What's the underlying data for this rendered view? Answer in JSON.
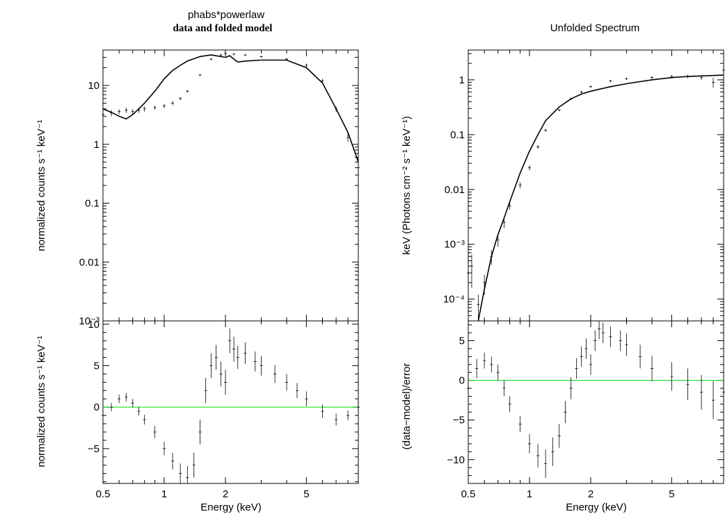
{
  "left": {
    "title": "phabs*powerlaw",
    "subtitle": "data and folded model",
    "top_panel": {
      "ylabel": "normalized counts s⁻¹ keV⁻¹",
      "yscale": "log",
      "ylim": [
        0.001,
        40
      ],
      "yticks": [
        {
          "v": 10,
          "label": "10"
        },
        {
          "v": 1,
          "label": "1"
        },
        {
          "v": 0.1,
          "label": "0.1"
        },
        {
          "v": 0.01,
          "label": "0.01"
        },
        {
          "v": 0.001,
          "label": "10⁻³"
        }
      ]
    },
    "bottom_panel": {
      "ylabel": "normalized counts s⁻¹ keV⁻¹",
      "yscale": "linear",
      "ylim": [
        -9.2,
        10.4
      ],
      "yticks": [
        {
          "v": 10,
          "label": "10"
        },
        {
          "v": 5,
          "label": "5"
        },
        {
          "v": 0,
          "label": "0"
        },
        {
          "v": -5,
          "label": "−5"
        }
      ]
    },
    "xlabel": "Energy (keV)",
    "xticks": [
      {
        "v": 0.5,
        "label": "0.5"
      },
      {
        "v": 1,
        "label": "1"
      },
      {
        "v": 2,
        "label": "2"
      },
      {
        "v": 5,
        "label": "5"
      }
    ]
  },
  "right": {
    "title": "Unfolded Spectrum",
    "top_panel": {
      "ylabel": "keV (Photons cm⁻² s⁻¹ keV⁻¹)",
      "yscale": "log",
      "ylim": [
        4e-05,
        3.5
      ],
      "yticks": [
        {
          "v": 1,
          "label": "1"
        },
        {
          "v": 0.1,
          "label": "0.1"
        },
        {
          "v": 0.01,
          "label": "0.01"
        },
        {
          "v": 0.001,
          "label": "10⁻³"
        },
        {
          "v": 0.0001,
          "label": "10⁻⁴"
        }
      ]
    },
    "bottom_panel": {
      "ylabel": "(data−model)/error",
      "yscale": "linear",
      "ylim": [
        -13,
        7.5
      ],
      "yticks": [
        {
          "v": 5,
          "label": "5"
        },
        {
          "v": 0,
          "label": "0"
        },
        {
          "v": -5,
          "label": "−5"
        },
        {
          "v": -10,
          "label": "−10"
        }
      ]
    },
    "xlabel": "Energy (keV)",
    "xticks": [
      {
        "v": 0.5,
        "label": "0.5"
      },
      {
        "v": 1,
        "label": "1"
      },
      {
        "v": 2,
        "label": "2"
      },
      {
        "v": 5,
        "label": "5"
      }
    ]
  },
  "colors": {
    "data": "#000000",
    "model": "#000000",
    "zero_line": "#00dd00",
    "frame": "#000000"
  },
  "chart_data": [
    {
      "type": "line",
      "panel": "left-top",
      "title": "phabs*powerlaw",
      "subtitle": "data and folded model",
      "ylabel": "normalized counts s⁻¹ keV⁻¹",
      "yscale": "log",
      "xscale": "log",
      "xlim": [
        0.5,
        9.0
      ],
      "ylim": [
        0.001,
        40
      ],
      "series": [
        {
          "style": "line",
          "x": [
            0.5,
            0.55,
            0.6,
            0.65,
            0.7,
            0.75,
            0.8,
            0.9,
            1.0,
            1.1,
            1.2,
            1.3,
            1.5,
            1.7,
            1.9,
            2.0,
            2.1,
            2.2,
            2.3,
            2.5,
            3.0,
            4.0,
            5.0,
            6.0,
            7.0,
            8.0,
            9.0
          ],
          "y": [
            4.0,
            3.5,
            3.0,
            2.7,
            3.2,
            4.0,
            5.0,
            8.0,
            13,
            18,
            22,
            26,
            31,
            33,
            31,
            30,
            32,
            28,
            25,
            26,
            27,
            27,
            20,
            11,
            4.0,
            1.6,
            0.5
          ]
        },
        {
          "style": "errorbars",
          "x": [
            0.5,
            0.55,
            0.6,
            0.65,
            0.7,
            0.75,
            0.8,
            0.9,
            1.0,
            1.1,
            1.2,
            1.3,
            1.5,
            1.7,
            1.9,
            2.0,
            2.2,
            2.5,
            3.0,
            4.0,
            5.0,
            6.0,
            7.0,
            8.0,
            9.0
          ],
          "y": [
            3.2,
            3.4,
            3.6,
            3.8,
            3.6,
            3.8,
            4.0,
            4.2,
            4.5,
            5.0,
            6.0,
            8.0,
            15,
            28,
            33,
            35,
            34,
            33,
            31,
            28,
            22,
            12,
            4.0,
            1.3,
            0.4
          ],
          "err_rel": [
            0.15,
            0.12,
            0.1,
            0.1,
            0.1,
            0.1,
            0.1,
            0.08,
            0.08,
            0.08,
            0.06,
            0.05,
            0.04,
            0.04,
            0.04,
            0.04,
            0.04,
            0.04,
            0.04,
            0.05,
            0.06,
            0.08,
            0.1,
            0.15,
            0.25
          ]
        }
      ]
    },
    {
      "type": "scatter",
      "panel": "left-bottom",
      "xlabel": "Energy (keV)",
      "ylabel": "normalized counts s⁻¹ keV⁻¹",
      "xscale": "log",
      "xlim": [
        0.5,
        9.0
      ],
      "ylim": [
        -9.2,
        10.4
      ],
      "zero_line": true,
      "series": [
        {
          "style": "errorbars",
          "x": [
            0.5,
            0.55,
            0.6,
            0.65,
            0.7,
            0.75,
            0.8,
            0.9,
            1.0,
            1.1,
            1.2,
            1.3,
            1.4,
            1.5,
            1.6,
            1.7,
            1.8,
            1.9,
            2.0,
            2.1,
            2.2,
            2.3,
            2.5,
            2.8,
            3.0,
            3.5,
            4.0,
            4.5,
            5.0,
            6.0,
            7.0,
            8.0,
            9.0
          ],
          "y": [
            -1.0,
            0.0,
            1.0,
            1.2,
            0.5,
            -0.5,
            -1.5,
            -3.0,
            -5.0,
            -6.5,
            -8.0,
            -8.5,
            -7.0,
            -3.0,
            2.0,
            5.0,
            6.0,
            4.0,
            3.0,
            8.0,
            7.0,
            6.0,
            6.5,
            5.5,
            5.0,
            4.0,
            3.0,
            2.0,
            1.0,
            -0.5,
            -1.5,
            -1.0,
            0.0
          ],
          "err": [
            0.6,
            0.5,
            0.5,
            0.5,
            0.5,
            0.5,
            0.6,
            0.7,
            0.8,
            1.0,
            1.2,
            1.4,
            1.5,
            1.5,
            1.5,
            1.5,
            1.5,
            1.5,
            1.5,
            1.5,
            1.5,
            1.4,
            1.3,
            1.2,
            1.2,
            1.1,
            1.0,
            0.9,
            0.9,
            0.8,
            0.7,
            0.6,
            0.5
          ]
        }
      ]
    },
    {
      "type": "line",
      "panel": "right-top",
      "title": "Unfolded Spectrum",
      "ylabel": "keV (Photons cm⁻² s⁻¹ keV⁻¹)",
      "yscale": "log",
      "xscale": "log",
      "xlim": [
        0.5,
        9.0
      ],
      "ylim": [
        4e-05,
        3.5
      ],
      "series": [
        {
          "style": "line",
          "x": [
            0.56,
            0.6,
            0.65,
            0.7,
            0.75,
            0.8,
            0.9,
            1.0,
            1.1,
            1.2,
            1.4,
            1.6,
            1.8,
            2.0,
            2.5,
            3.0,
            4.0,
            5.0,
            6.0,
            7.0,
            8.0,
            9.0
          ],
          "y": [
            4e-05,
            0.00015,
            0.0006,
            0.0015,
            0.003,
            0.006,
            0.02,
            0.05,
            0.1,
            0.18,
            0.32,
            0.45,
            0.55,
            0.62,
            0.75,
            0.85,
            1.0,
            1.1,
            1.15,
            1.18,
            1.2,
            1.22
          ]
        },
        {
          "style": "errorbars",
          "x": [
            0.5,
            0.52,
            0.56,
            0.6,
            0.65,
            0.7,
            0.75,
            0.8,
            0.9,
            1.0,
            1.1,
            1.2,
            1.4,
            1.6,
            1.8,
            2.0,
            2.5,
            3.0,
            4.0,
            5.0,
            6.0,
            7.0,
            8.0,
            9.0
          ],
          "y": [
            0.0003,
            0.0004,
            8e-05,
            0.0002,
            0.0006,
            0.0012,
            0.0025,
            0.005,
            0.012,
            0.025,
            0.06,
            0.12,
            0.28,
            0.45,
            0.6,
            0.75,
            0.95,
            1.05,
            1.1,
            1.15,
            1.15,
            1.1,
            0.9,
            1.5
          ],
          "err_rel": [
            0.6,
            0.6,
            0.5,
            0.4,
            0.3,
            0.25,
            0.2,
            0.15,
            0.12,
            0.1,
            0.08,
            0.06,
            0.05,
            0.05,
            0.05,
            0.05,
            0.05,
            0.05,
            0.06,
            0.07,
            0.08,
            0.1,
            0.2,
            0.3
          ]
        }
      ]
    },
    {
      "type": "scatter",
      "panel": "right-bottom",
      "xlabel": "Energy (keV)",
      "ylabel": "(data−model)/error",
      "xscale": "log",
      "xlim": [
        0.5,
        9.0
      ],
      "ylim": [
        -13,
        7.5
      ],
      "zero_line": true,
      "series": [
        {
          "style": "errorbars",
          "x": [
            0.5,
            0.55,
            0.6,
            0.65,
            0.7,
            0.75,
            0.8,
            0.9,
            1.0,
            1.1,
            1.2,
            1.3,
            1.4,
            1.5,
            1.6,
            1.7,
            1.8,
            1.9,
            2.0,
            2.1,
            2.2,
            2.3,
            2.5,
            2.8,
            3.0,
            3.5,
            4.0,
            5.0,
            6.0,
            7.0,
            8.0,
            9.0
          ],
          "y": [
            -1.0,
            1.5,
            2.5,
            2.0,
            1.0,
            -1.0,
            -3.0,
            -5.5,
            -8.0,
            -9.5,
            -10.5,
            -9.0,
            -7.0,
            -4.0,
            -1.0,
            1.5,
            3.0,
            4.0,
            2.0,
            5.0,
            6.5,
            6.0,
            5.5,
            5.0,
            4.5,
            3.0,
            1.5,
            0.5,
            -0.5,
            -1.5,
            -2.5,
            -1.5
          ],
          "err": [
            1.5,
            1.2,
            1.0,
            1.0,
            1.0,
            1.0,
            1.0,
            1.0,
            1.2,
            1.5,
            1.8,
            1.8,
            1.5,
            1.4,
            1.4,
            1.3,
            1.3,
            1.3,
            1.3,
            1.3,
            1.3,
            1.3,
            1.3,
            1.3,
            1.4,
            1.5,
            1.6,
            1.8,
            2.0,
            2.2,
            2.4,
            2.5
          ]
        }
      ]
    }
  ]
}
